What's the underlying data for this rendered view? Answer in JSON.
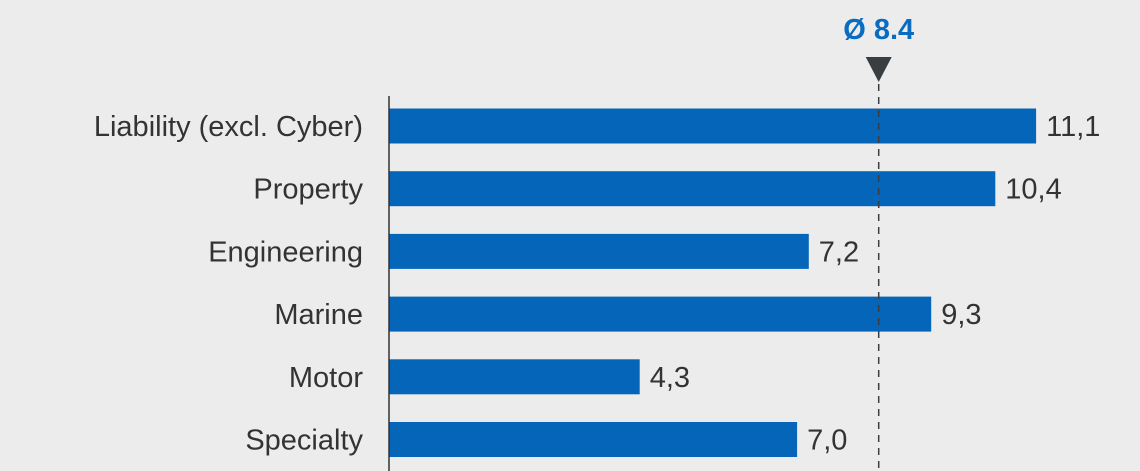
{
  "chart_data": {
    "type": "bar",
    "orientation": "horizontal",
    "categories": [
      "Liability (excl. Cyber)",
      "Property",
      "Engineering",
      "Marine",
      "Motor",
      "Specialty"
    ],
    "values": [
      11.1,
      10.4,
      7.2,
      9.3,
      4.3,
      7.0
    ],
    "value_labels": [
      "11,1",
      "10,4",
      "7,2",
      "9,3",
      "4,3",
      "7,0"
    ],
    "average": {
      "value": 8.4,
      "label": "Ø 8.4"
    },
    "xlim": [
      0,
      11.1
    ],
    "grid": false,
    "legend": "none",
    "colors": {
      "bar": "#0565b8",
      "average_label": "#0a6cc0",
      "marker": "#3a3e42",
      "text": "#333333",
      "axis": "#333333",
      "background": "#ececec"
    }
  }
}
